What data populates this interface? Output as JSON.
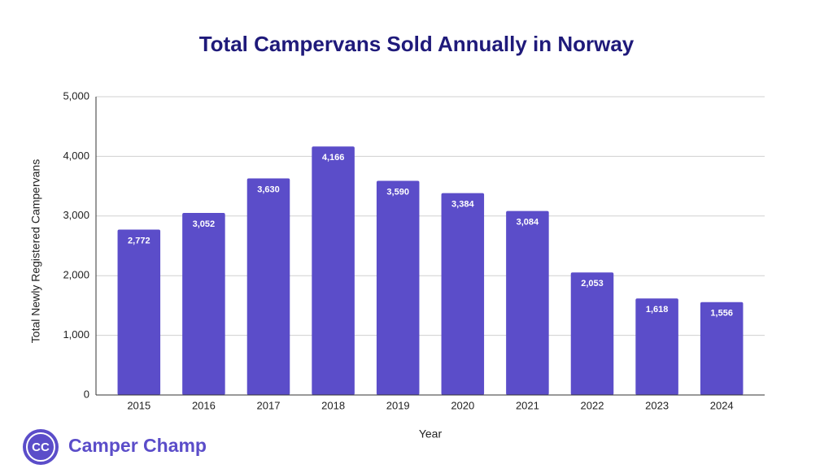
{
  "chart_data": {
    "type": "bar",
    "title": "Total Campervans Sold Annually in Norway",
    "x_label": "Year",
    "y_label": "Total Newly Registered Campervans",
    "categories": [
      "2015",
      "2016",
      "2017",
      "2018",
      "2019",
      "2020",
      "2021",
      "2022",
      "2023",
      "2024"
    ],
    "values": [
      2772,
      3052,
      3630,
      4166,
      3590,
      3384,
      3084,
      2053,
      1618,
      1556
    ],
    "value_labels": [
      "2,772",
      "3,052",
      "3,630",
      "4,166",
      "3,590",
      "3,384",
      "3,084",
      "2,053",
      "1,618",
      "1,556"
    ],
    "color": "#5b4dc9",
    "ylim": [
      0,
      5000
    ],
    "yticks": [
      0,
      {
        "value": 1000,
        "label": "1,000"
      },
      {
        "value": 2000,
        "label": "2,000"
      },
      {
        "value": 3000,
        "label": "3,000"
      },
      {
        "value": 4000,
        "label": "4,000"
      },
      {
        "value": 5000,
        "label": "5,000"
      }
    ],
    "grid": true
  },
  "brand": {
    "icon": "CC",
    "name": "Camper Champ"
  }
}
